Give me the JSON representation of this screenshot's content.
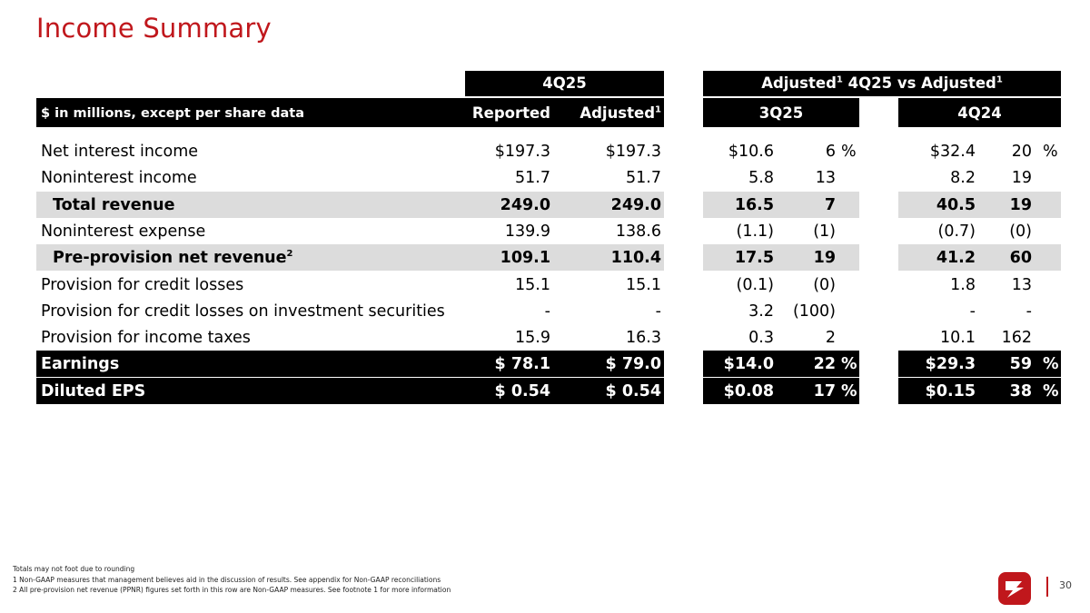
{
  "title": "Income Summary",
  "header": {
    "group1": "4Q25",
    "group2_pre": "Adjusted",
    "group2_mid": " 4Q25 vs Adjusted",
    "sup1": "1",
    "units": "$ in millions, except per share data",
    "reported": "Reported",
    "adjusted": "Adjusted",
    "q3": "3Q25",
    "q4": "4Q24"
  },
  "rows": [
    {
      "label": "Net interest income",
      "reported": "$197.3",
      "adjusted": "$197.3",
      "q3_amt": "$10.6",
      "q3_pct": "6",
      "q3_sign": "%",
      "q4_amt": "$32.4",
      "q4_pct": "20",
      "q4_sign": "%"
    },
    {
      "label": "Noninterest income",
      "reported": "51.7",
      "adjusted": "51.7",
      "q3_amt": "5.8",
      "q3_pct": "13",
      "q3_sign": "",
      "q4_amt": "8.2",
      "q4_pct": "19",
      "q4_sign": ""
    },
    {
      "label": "Total revenue",
      "reported": "249.0",
      "adjusted": "249.0",
      "q3_amt": "16.5",
      "q3_pct": "7",
      "q3_sign": "",
      "q4_amt": "40.5",
      "q4_pct": "19",
      "q4_sign": ""
    },
    {
      "label": "Noninterest expense",
      "reported": "139.9",
      "adjusted": "138.6",
      "q3_amt": "(1.1)",
      "q3_pct": "(1)",
      "q3_sign": "",
      "q4_amt": "(0.7)",
      "q4_pct": "(0)",
      "q4_sign": ""
    },
    {
      "label": "Pre-provision net revenue",
      "label_sup": "2",
      "reported": "109.1",
      "adjusted": "110.4",
      "q3_amt": "17.5",
      "q3_pct": "19",
      "q3_sign": "",
      "q4_amt": "41.2",
      "q4_pct": "60",
      "q4_sign": ""
    },
    {
      "label": "Provision for credit losses",
      "reported": "15.1",
      "adjusted": "15.1",
      "q3_amt": "(0.1)",
      "q3_pct": "(0)",
      "q3_sign": "",
      "q4_amt": "1.8",
      "q4_pct": "13",
      "q4_sign": ""
    },
    {
      "label": "Provision for credit losses on investment securities",
      "reported": "-",
      "adjusted": "-",
      "q3_amt": "3.2",
      "q3_pct": "(100)",
      "q3_sign": "",
      "q4_amt": "-",
      "q4_pct": "-",
      "q4_sign": ""
    },
    {
      "label": "Provision for income taxes",
      "reported": "15.9",
      "adjusted": "16.3",
      "q3_amt": "0.3",
      "q3_pct": "2",
      "q3_sign": "",
      "q4_amt": "10.1",
      "q4_pct": "162",
      "q4_sign": ""
    },
    {
      "label": "Earnings",
      "reported": "$ 78.1",
      "adjusted": "$ 79.0",
      "q3_amt": "$14.0",
      "q3_pct": "22",
      "q3_sign": "%",
      "q4_amt": "$29.3",
      "q4_pct": "59",
      "q4_sign": "%"
    },
    {
      "label": "Diluted EPS",
      "reported": "$ 0.54",
      "adjusted": "$ 0.54",
      "q3_amt": "$0.08",
      "q3_pct": "17",
      "q3_sign": "%",
      "q4_amt": "$0.15",
      "q4_pct": "38",
      "q4_sign": "%"
    }
  ],
  "footnotes": {
    "line1": "Totals may not foot due to rounding",
    "line2": "1   Non-GAAP measures that management believes aid in the discussion of results. See appendix for Non-GAAP reconciliations",
    "line3": "2   All pre-provision net revenue (PPNR) figures set forth in this row are Non-GAAP measures. See footnote 1 for more information"
  },
  "page_number": "30",
  "colors": {
    "accent": "#c0171c",
    "header_bg": "#000000",
    "shade": "#dcdcdc"
  }
}
